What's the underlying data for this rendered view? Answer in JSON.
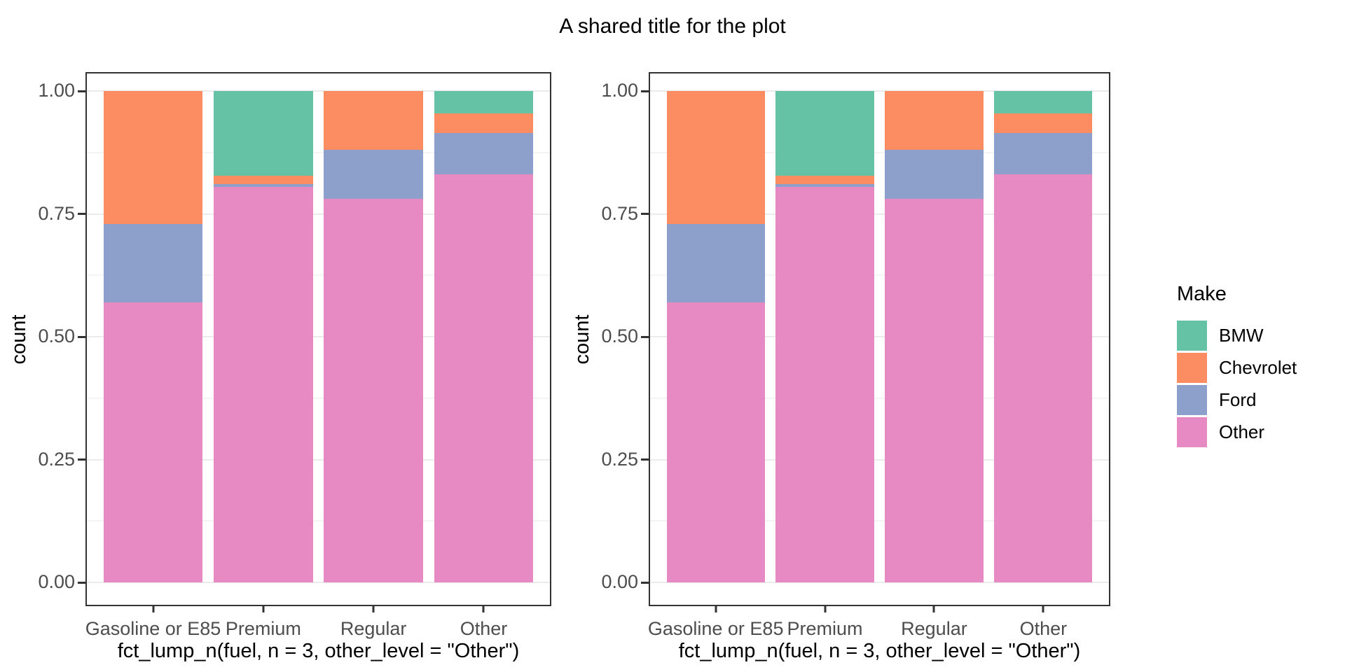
{
  "title": "A shared title for the plot",
  "legend": {
    "title": "Make",
    "position": "right",
    "items": [
      {
        "label": "BMW",
        "color": "#66C2A5"
      },
      {
        "label": "Chevrolet",
        "color": "#FC8D62"
      },
      {
        "label": "Ford",
        "color": "#8DA0CB"
      },
      {
        "label": "Other",
        "color": "#E78AC3"
      }
    ]
  },
  "style": {
    "panel_border_color": "#333333",
    "grid_major_color": "#ebebeb",
    "grid_minor_color": "#f4f4f4",
    "tick_label_color": "#4d4d4d",
    "axis_title_color": "#000000",
    "background": "#ffffff"
  },
  "chart_data": [
    {
      "panel": "left",
      "type": "bar",
      "stacked": true,
      "position": "fill",
      "xlabel": "fct_lump_n(fuel, n = 3, other_level = \"Other\")",
      "ylabel": "count",
      "categories": [
        "Gasoline or E85",
        "Premium",
        "Regular",
        "Other"
      ],
      "series": [
        {
          "name": "BMW",
          "color": "#66C2A5",
          "values": [
            0,
            0.173,
            0,
            0.045
          ]
        },
        {
          "name": "Chevrolet",
          "color": "#FC8D62",
          "values": [
            0.27,
            0.017,
            0.12,
            0.04
          ]
        },
        {
          "name": "Ford",
          "color": "#8DA0CB",
          "values": [
            0.16,
            0.005,
            0.1,
            0.085
          ]
        },
        {
          "name": "Other",
          "color": "#E78AC3",
          "values": [
            0.57,
            0.805,
            0.78,
            0.83
          ]
        }
      ],
      "ytick_labels": [
        "0.00",
        "0.25",
        "0.50",
        "0.75",
        "1.00"
      ],
      "ytick_values": [
        0,
        0.25,
        0.5,
        0.75,
        1
      ],
      "ylim": [
        0,
        1
      ],
      "grid": "major and minor horizontal"
    },
    {
      "panel": "right",
      "type": "bar",
      "stacked": true,
      "position": "fill",
      "xlabel": "fct_lump_n(fuel, n = 3, other_level = \"Other\")",
      "ylabel": "count",
      "categories": [
        "Gasoline or E85",
        "Premium",
        "Regular",
        "Other"
      ],
      "series": [
        {
          "name": "BMW",
          "color": "#66C2A5",
          "values": [
            0,
            0.173,
            0,
            0.045
          ]
        },
        {
          "name": "Chevrolet",
          "color": "#FC8D62",
          "values": [
            0.27,
            0.017,
            0.12,
            0.04
          ]
        },
        {
          "name": "Ford",
          "color": "#8DA0CB",
          "values": [
            0.16,
            0.005,
            0.1,
            0.085
          ]
        },
        {
          "name": "Other",
          "color": "#E78AC3",
          "values": [
            0.57,
            0.805,
            0.78,
            0.83
          ]
        }
      ],
      "ytick_labels": [
        "0.00",
        "0.25",
        "0.50",
        "0.75",
        "1.00"
      ],
      "ytick_values": [
        0,
        0.25,
        0.5,
        0.75,
        1
      ],
      "ylim": [
        0,
        1
      ],
      "grid": "major and minor horizontal"
    }
  ]
}
